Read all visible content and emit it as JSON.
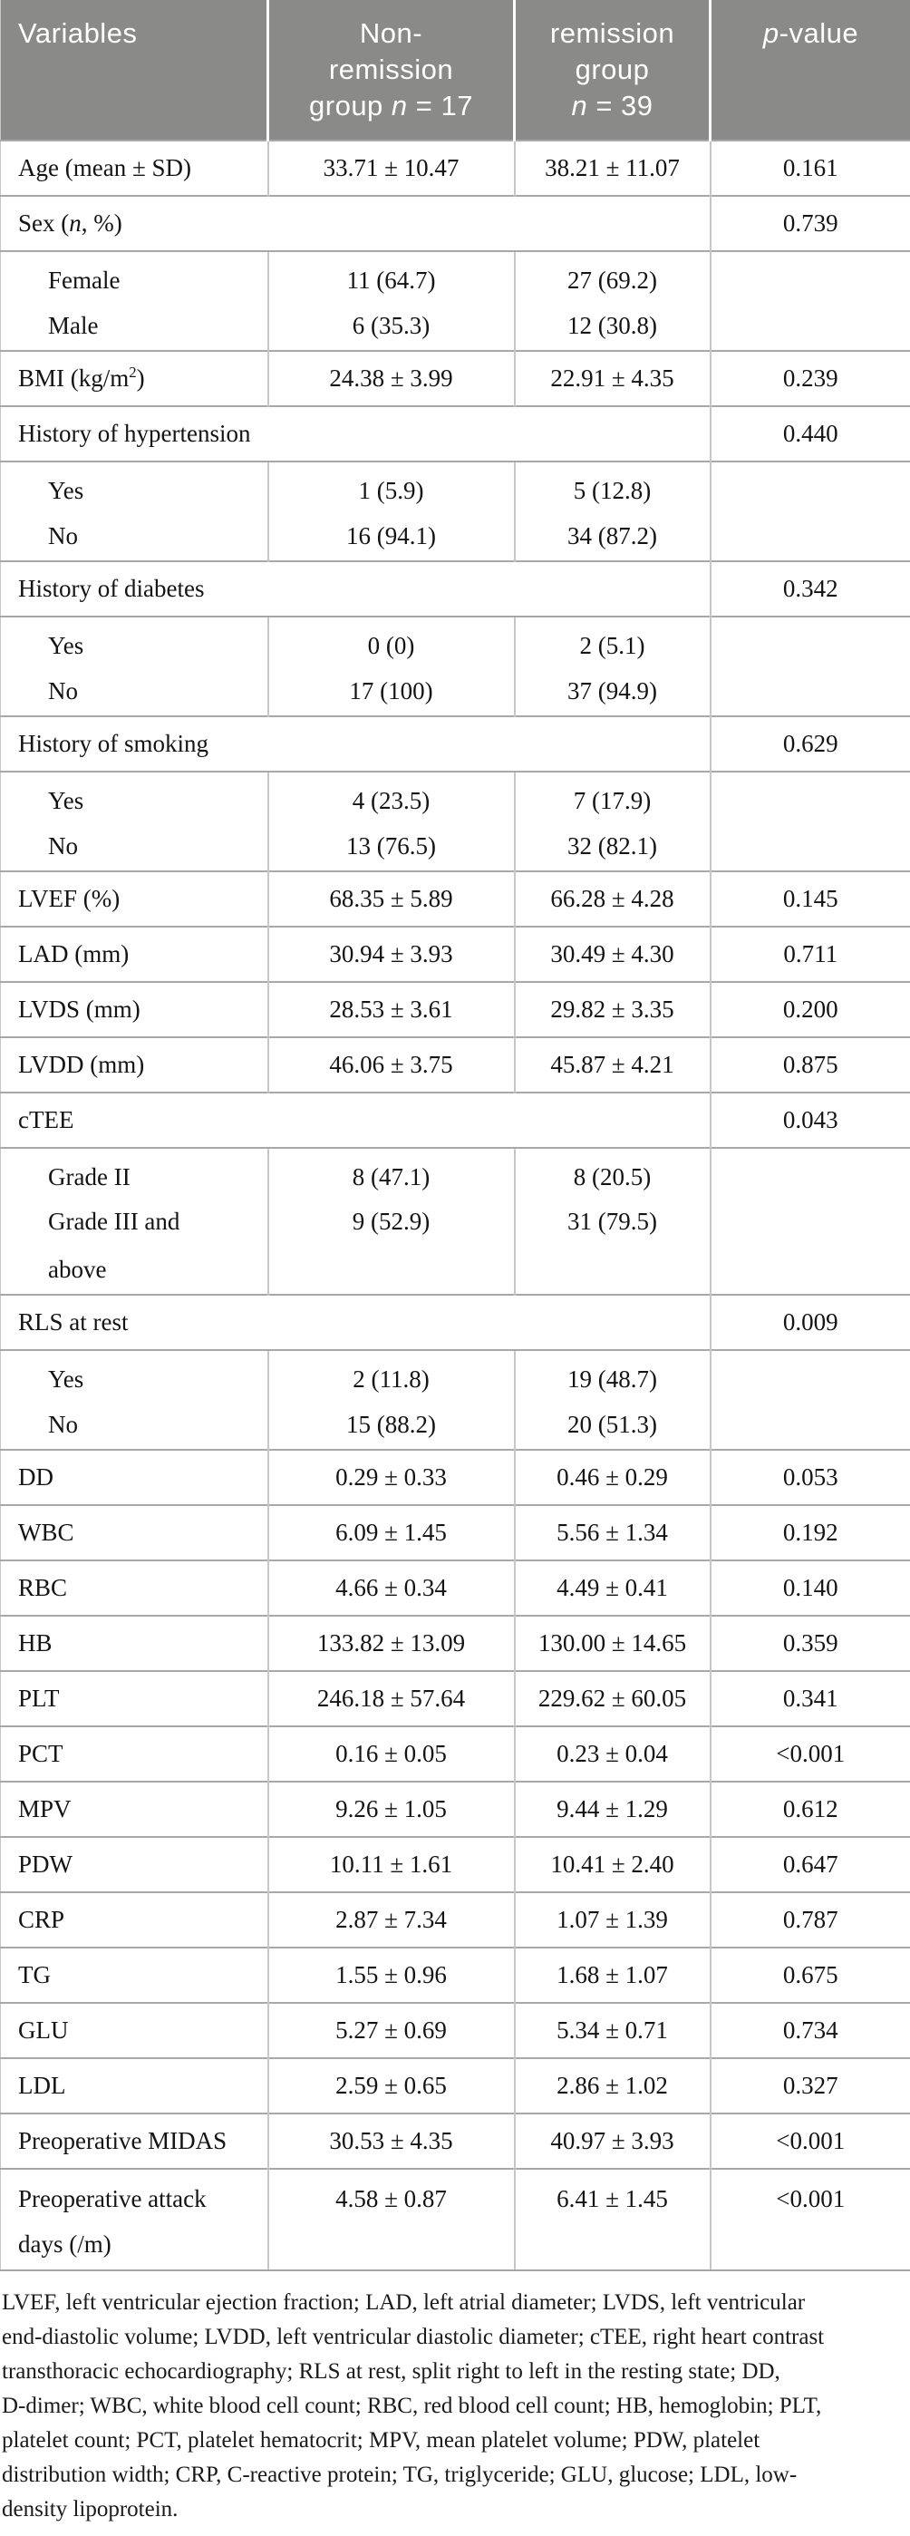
{
  "colors": {
    "header_bg": "#8a8a88",
    "header_separator": "#ffffff",
    "header_text": "#ffffff",
    "row_border": "#a8a8a8",
    "cell_border": "#c6c6c6",
    "body_text": "#141414"
  },
  "header": {
    "cells": [
      {
        "id": "variables",
        "align": "left",
        "lines": [
          "Variables"
        ]
      },
      {
        "id": "nonremission-group",
        "align": "center",
        "lines": [
          "Non-",
          "remission",
          "group *n* = 17"
        ]
      },
      {
        "id": "remission-group",
        "align": "center",
        "lines": [
          "remission",
          "group",
          "*n* = 39"
        ]
      },
      {
        "id": "p-value",
        "align": "center",
        "lines": [
          "*p*-value"
        ]
      }
    ]
  },
  "rows": [
    {
      "type": "data",
      "label": "Age (mean ± SD)",
      "v1": "33.71 ± 10.47",
      "v2": "38.21 ± 11.07",
      "p": "0.161"
    },
    {
      "type": "span",
      "label": "Sex (*n*, %)",
      "p": "0.739"
    },
    {
      "type": "group",
      "lines": [
        {
          "label": "Female",
          "v1": "11 (64.7)",
          "v2": "27 (69.2)"
        },
        {
          "label": "Male",
          "v1": "6 (35.3)",
          "v2": "12 (30.8)"
        }
      ]
    },
    {
      "type": "data",
      "label": "BMI (kg/m^2^)",
      "v1": "24.38 ± 3.99",
      "v2": "22.91 ± 4.35",
      "p": "0.239"
    },
    {
      "type": "span",
      "label": "History of hypertension",
      "p": "0.440"
    },
    {
      "type": "group",
      "lines": [
        {
          "label": "Yes",
          "v1": "1 (5.9)",
          "v2": "5 (12.8)"
        },
        {
          "label": "No",
          "v1": "16 (94.1)",
          "v2": "34 (87.2)"
        }
      ]
    },
    {
      "type": "span",
      "label": "History of diabetes",
      "p": "0.342"
    },
    {
      "type": "group",
      "lines": [
        {
          "label": "Yes",
          "v1": "0 (0)",
          "v2": "2 (5.1)"
        },
        {
          "label": "No",
          "v1": "17 (100)",
          "v2": "37 (94.9)"
        }
      ]
    },
    {
      "type": "span",
      "label": "History of smoking",
      "p": "0.629"
    },
    {
      "type": "group",
      "lines": [
        {
          "label": "Yes",
          "v1": "4 (23.5)",
          "v2": "7 (17.9)"
        },
        {
          "label": "No",
          "v1": "13 (76.5)",
          "v2": "32 (82.1)"
        }
      ]
    },
    {
      "type": "data",
      "label": "LVEF (%)",
      "v1": "68.35 ± 5.89",
      "v2": "66.28 ± 4.28",
      "p": "0.145"
    },
    {
      "type": "data",
      "label": "LAD (mm)",
      "v1": "30.94 ± 3.93",
      "v2": "30.49 ± 4.30",
      "p": "0.711"
    },
    {
      "type": "data",
      "label": "LVDS (mm)",
      "v1": "28.53 ± 3.61",
      "v2": "29.82 ± 3.35",
      "p": "0.200"
    },
    {
      "type": "data",
      "label": "LVDD (mm)",
      "v1": "46.06 ± 3.75",
      "v2": "45.87 ± 4.21",
      "p": "0.875"
    },
    {
      "type": "span",
      "label": "cTEE",
      "p": "0.043"
    },
    {
      "type": "group",
      "kind": "grade",
      "lines": [
        {
          "label": "Grade II",
          "v1": "8 (47.1)",
          "v2": "8 (20.5)"
        },
        {
          "label": "Grade III and",
          "v1": "9 (52.9)",
          "v2": "31 (79.5)"
        },
        {
          "label": "above",
          "v1": "",
          "v2": ""
        }
      ]
    },
    {
      "type": "span",
      "label": "RLS at rest",
      "p": "0.009"
    },
    {
      "type": "group",
      "lines": [
        {
          "label": "Yes",
          "v1": "2 (11.8)",
          "v2": "19 (48.7)"
        },
        {
          "label": "No",
          "v1": "15 (88.2)",
          "v2": "20 (51.3)"
        }
      ]
    },
    {
      "type": "data",
      "label": "DD",
      "v1": "0.29 ± 0.33",
      "v2": "0.46 ± 0.29",
      "p": "0.053"
    },
    {
      "type": "data",
      "label": "WBC",
      "v1": "6.09 ± 1.45",
      "v2": "5.56 ± 1.34",
      "p": "0.192"
    },
    {
      "type": "data",
      "label": "RBC",
      "v1": "4.66 ± 0.34",
      "v2": "4.49 ± 0.41",
      "p": "0.140"
    },
    {
      "type": "data",
      "label": "HB",
      "v1": "133.82 ± 13.09",
      "v2": "130.00 ± 14.65",
      "p": "0.359"
    },
    {
      "type": "data",
      "label": "PLT",
      "v1": "246.18 ± 57.64",
      "v2": "229.62 ± 60.05",
      "p": "0.341"
    },
    {
      "type": "data",
      "label": "PCT",
      "v1": "0.16 ± 0.05",
      "v2": "0.23 ± 0.04",
      "p": "<0.001"
    },
    {
      "type": "data",
      "label": "MPV",
      "v1": "9.26 ± 1.05",
      "v2": "9.44 ± 1.29",
      "p": "0.612"
    },
    {
      "type": "data",
      "label": "PDW",
      "v1": "10.11 ± 1.61",
      "v2": "10.41 ± 2.40",
      "p": "0.647"
    },
    {
      "type": "data",
      "label": "CRP",
      "v1": "2.87 ± 7.34",
      "v2": "1.07 ± 1.39",
      "p": "0.787"
    },
    {
      "type": "data",
      "label": "TG",
      "v1": "1.55 ± 0.96",
      "v2": "1.68 ± 1.07",
      "p": "0.675"
    },
    {
      "type": "data",
      "label": "GLU",
      "v1": "5.27 ± 0.69",
      "v2": "5.34 ± 0.71",
      "p": "0.734"
    },
    {
      "type": "data",
      "label": "LDL",
      "v1": "2.59 ± 0.65",
      "v2": "2.86 ± 1.02",
      "p": "0.327"
    },
    {
      "type": "data",
      "label": "Preoperative MIDAS",
      "v1": "30.53 ± 4.35",
      "v2": "40.97 ± 3.93",
      "p": "<0.001"
    },
    {
      "type": "wrap",
      "kind": "attack",
      "lines": [
        {
          "label": "Preoperative attack",
          "v1": "4.58 ± 0.87",
          "v2": "6.41 ± 1.45",
          "p": "<0.001"
        },
        {
          "label": "days (/m)",
          "v1": "",
          "v2": "",
          "p": ""
        }
      ]
    }
  ],
  "footnote_lines": [
    "LVEF, left ventricular ejection fraction; LAD, left atrial diameter; LVDS, left ventricular",
    "end-diastolic volume; LVDD, left ventricular diastolic diameter; cTEE, right heart contrast",
    "transthoracic echocardiography; RLS at rest, split right to left in the resting state; DD,",
    "D-dimer; WBC, white blood cell count; RBC, red blood cell count; HB, hemoglobin; PLT,",
    "platelet count; PCT, platelet hematocrit; MPV, mean platelet volume; PDW, platelet",
    "distribution width; CRP, C-reactive protein; TG, triglyceride; GLU, glucose; LDL, low-",
    "density lipoprotein."
  ]
}
